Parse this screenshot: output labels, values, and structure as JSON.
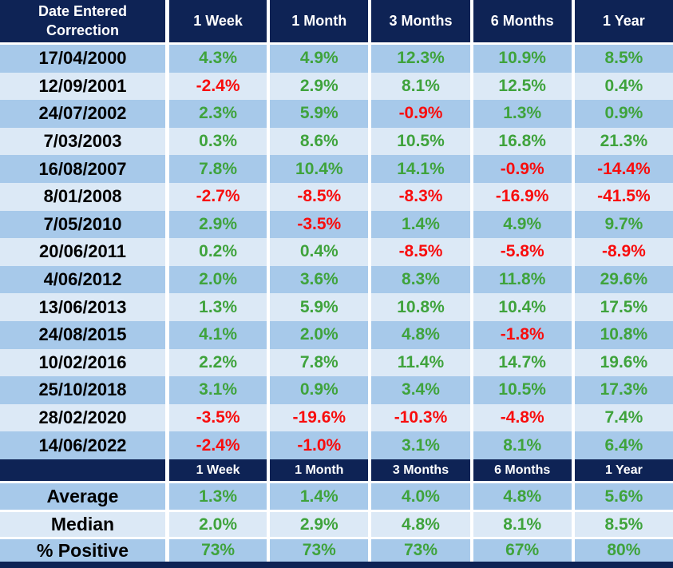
{
  "chart_data": {
    "type": "table",
    "header": {
      "date_column_lines": [
        "Date Entered",
        "Correction"
      ],
      "periods": [
        "1 Week",
        "1 Month",
        "3 Months",
        "6 Months",
        "1 Year"
      ]
    },
    "rows": [
      {
        "date": "17/04/2000",
        "values": [
          "4.3%",
          "4.9%",
          "12.3%",
          "10.9%",
          "8.5%"
        ]
      },
      {
        "date": "12/09/2001",
        "values": [
          "-2.4%",
          "2.9%",
          "8.1%",
          "12.5%",
          "0.4%"
        ]
      },
      {
        "date": "24/07/2002",
        "values": [
          "2.3%",
          "5.9%",
          "-0.9%",
          "1.3%",
          "0.9%"
        ]
      },
      {
        "date": "7/03/2003",
        "values": [
          "0.3%",
          "8.6%",
          "10.5%",
          "16.8%",
          "21.3%"
        ]
      },
      {
        "date": "16/08/2007",
        "values": [
          "7.8%",
          "10.4%",
          "14.1%",
          "-0.9%",
          "-14.4%"
        ]
      },
      {
        "date": "8/01/2008",
        "values": [
          "-2.7%",
          "-8.5%",
          "-8.3%",
          "-16.9%",
          "-41.5%"
        ]
      },
      {
        "date": "7/05/2010",
        "values": [
          "2.9%",
          "-3.5%",
          "1.4%",
          "4.9%",
          "9.7%"
        ]
      },
      {
        "date": "20/06/2011",
        "values": [
          "0.2%",
          "0.4%",
          "-8.5%",
          "-5.8%",
          "-8.9%"
        ]
      },
      {
        "date": "4/06/2012",
        "values": [
          "2.0%",
          "3.6%",
          "8.3%",
          "11.8%",
          "29.6%"
        ]
      },
      {
        "date": "13/06/2013",
        "values": [
          "1.3%",
          "5.9%",
          "10.8%",
          "10.4%",
          "17.5%"
        ]
      },
      {
        "date": "24/08/2015",
        "values": [
          "4.1%",
          "2.0%",
          "4.8%",
          "-1.8%",
          "10.8%"
        ]
      },
      {
        "date": "10/02/2016",
        "values": [
          "2.2%",
          "7.8%",
          "11.4%",
          "14.7%",
          "19.6%"
        ]
      },
      {
        "date": "25/10/2018",
        "values": [
          "3.1%",
          "0.9%",
          "3.4%",
          "10.5%",
          "17.3%"
        ]
      },
      {
        "date": "28/02/2020",
        "values": [
          "-3.5%",
          "-19.6%",
          "-10.3%",
          "-4.8%",
          "7.4%"
        ]
      },
      {
        "date": "14/06/2022",
        "values": [
          "-2.4%",
          "-1.0%",
          "3.1%",
          "8.1%",
          "6.4%"
        ]
      }
    ],
    "summary": {
      "periods": [
        "1 Week",
        "1 Month",
        "3 Months",
        "6 Months",
        "1 Year"
      ],
      "rows": [
        {
          "label": "Average",
          "values": [
            "1.3%",
            "1.4%",
            "4.0%",
            "4.8%",
            "5.6%"
          ]
        },
        {
          "label": "Median",
          "values": [
            "2.0%",
            "2.9%",
            "4.8%",
            "8.1%",
            "8.5%"
          ]
        },
        {
          "label": "% Positive",
          "values": [
            "73%",
            "73%",
            "73%",
            "67%",
            "80%"
          ]
        }
      ]
    },
    "colors": {
      "header_bg": "#0E2355",
      "header_text": "#FFFFFF",
      "band_medium": "#A7C9EA",
      "band_light": "#DCE9F6",
      "positive_text": "#3FA33C",
      "negative_text": "#F80D0D",
      "date_text": "#000000",
      "separator": "#FFFFFF"
    }
  }
}
